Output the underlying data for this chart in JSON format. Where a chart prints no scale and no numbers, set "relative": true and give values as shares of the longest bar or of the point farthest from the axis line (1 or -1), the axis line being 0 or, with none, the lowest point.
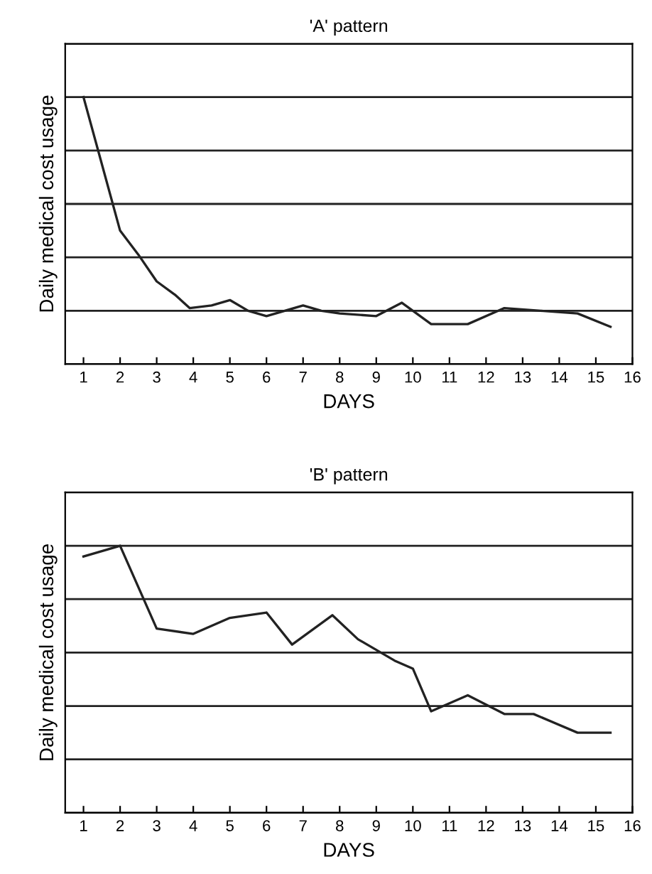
{
  "chart_data": [
    {
      "type": "line",
      "title": "'A' pattern",
      "xlabel": "DAYS",
      "ylabel": "Daily medical cost usage",
      "relative": true,
      "grid": "y",
      "legend": false,
      "xlim": [
        0.5,
        16
      ],
      "xticks": [
        1,
        2,
        3,
        4,
        5,
        6,
        7,
        8,
        9,
        10,
        11,
        12,
        13,
        14,
        15,
        16
      ],
      "series": [
        {
          "color": "#222222",
          "x": [
            1,
            2,
            2.5,
            3,
            3.5,
            3.9,
            4.5,
            5,
            5.5,
            6,
            7,
            7.5,
            8,
            9,
            9.7,
            10.5,
            11.5,
            12.5,
            13.5,
            14.5,
            15.4
          ],
          "values": [
            1,
            0.5,
            0.41,
            0.31,
            0.26,
            0.21,
            0.22,
            0.24,
            0.2,
            0.18,
            0.22,
            0.2,
            0.19,
            0.18,
            0.23,
            0.15,
            0.15,
            0.21,
            0.2,
            0.19,
            0.14
          ]
        }
      ]
    },
    {
      "type": "line",
      "title": "'B' pattern",
      "xlabel": "DAYS",
      "ylabel": "Daily medical cost usage",
      "relative": true,
      "grid": "y",
      "legend": false,
      "xlim": [
        0.5,
        16
      ],
      "xticks": [
        1,
        2,
        3,
        4,
        5,
        6,
        7,
        8,
        9,
        10,
        11,
        12,
        13,
        14,
        15,
        16
      ],
      "series": [
        {
          "color": "#222222",
          "x": [
            1,
            2,
            3,
            4,
            5,
            6,
            6.7,
            7.8,
            8.5,
            9.5,
            10,
            10.5,
            11.5,
            12.5,
            13.3,
            14.5,
            15.4
          ],
          "values": [
            0.96,
            1,
            0.69,
            0.67,
            0.73,
            0.75,
            0.63,
            0.74,
            0.65,
            0.57,
            0.54,
            0.38,
            0.44,
            0.37,
            0.37,
            0.3,
            0.3
          ]
        }
      ]
    }
  ]
}
